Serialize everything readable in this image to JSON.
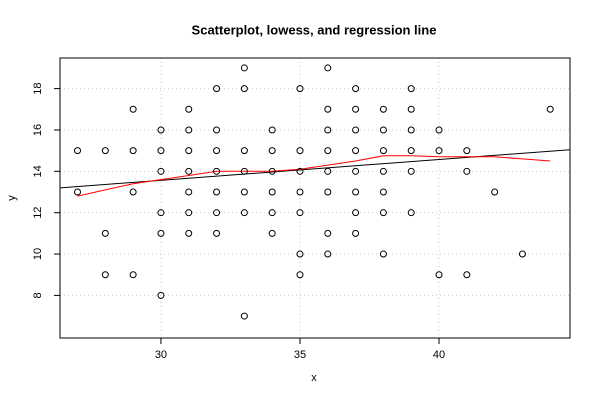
{
  "chart_data": {
    "type": "scatter",
    "title": "Scatterplot, lowess, and regression line",
    "x_label": "x",
    "y_label": "y",
    "x": [
      27,
      27,
      28,
      28,
      28,
      29,
      29,
      29,
      29,
      30,
      30,
      30,
      30,
      30,
      30,
      31,
      31,
      31,
      31,
      31,
      31,
      31,
      32,
      32,
      32,
      32,
      32,
      32,
      32,
      33,
      33,
      33,
      33,
      33,
      33,
      33,
      34,
      34,
      34,
      34,
      34,
      34,
      35,
      35,
      35,
      35,
      35,
      35,
      35,
      36,
      36,
      36,
      36,
      36,
      36,
      36,
      36,
      37,
      37,
      37,
      37,
      37,
      37,
      37,
      37,
      38,
      38,
      38,
      38,
      38,
      38,
      38,
      39,
      39,
      39,
      39,
      39,
      39,
      40,
      40,
      40,
      41,
      41,
      41,
      42,
      43,
      44
    ],
    "y": [
      15,
      13,
      15,
      11,
      9,
      17,
      15,
      13,
      9,
      16,
      15,
      14,
      12,
      11,
      8,
      17,
      16,
      15,
      14,
      13,
      12,
      11,
      18,
      16,
      15,
      14,
      13,
      12,
      11,
      19,
      18,
      15,
      14,
      13,
      12,
      7,
      16,
      15,
      14,
      13,
      12,
      11,
      18,
      15,
      14,
      13,
      12,
      10,
      9,
      19,
      17,
      16,
      15,
      14,
      13,
      11,
      10,
      18,
      17,
      16,
      15,
      14,
      13,
      12,
      11,
      17,
      16,
      15,
      14,
      13,
      12,
      10,
      18,
      17,
      16,
      15,
      14,
      12,
      16,
      15,
      9,
      15,
      14,
      9,
      13,
      10,
      17
    ],
    "point_color": "#000000",
    "lowess": {
      "color": "#ff0000",
      "x": [
        27,
        28,
        29,
        30,
        31,
        32,
        33,
        34,
        35,
        36,
        37,
        38,
        39,
        40,
        41,
        42,
        43,
        44
      ],
      "y": [
        12.8,
        13.1,
        13.4,
        13.6,
        13.8,
        14.0,
        14.0,
        14.0,
        14.1,
        14.3,
        14.5,
        14.75,
        14.75,
        14.7,
        14.7,
        14.7,
        14.6,
        14.5
      ]
    },
    "regression": {
      "color": "#000000",
      "intercept": 10.55,
      "slope": 0.1005
    },
    "xlim": [
      26.37,
      44.71
    ],
    "ylim": [
      5.94,
      19.48
    ],
    "xticks": [
      30,
      35,
      40
    ],
    "yticks": [
      8,
      10,
      12,
      14,
      16,
      18
    ],
    "grid": true
  }
}
